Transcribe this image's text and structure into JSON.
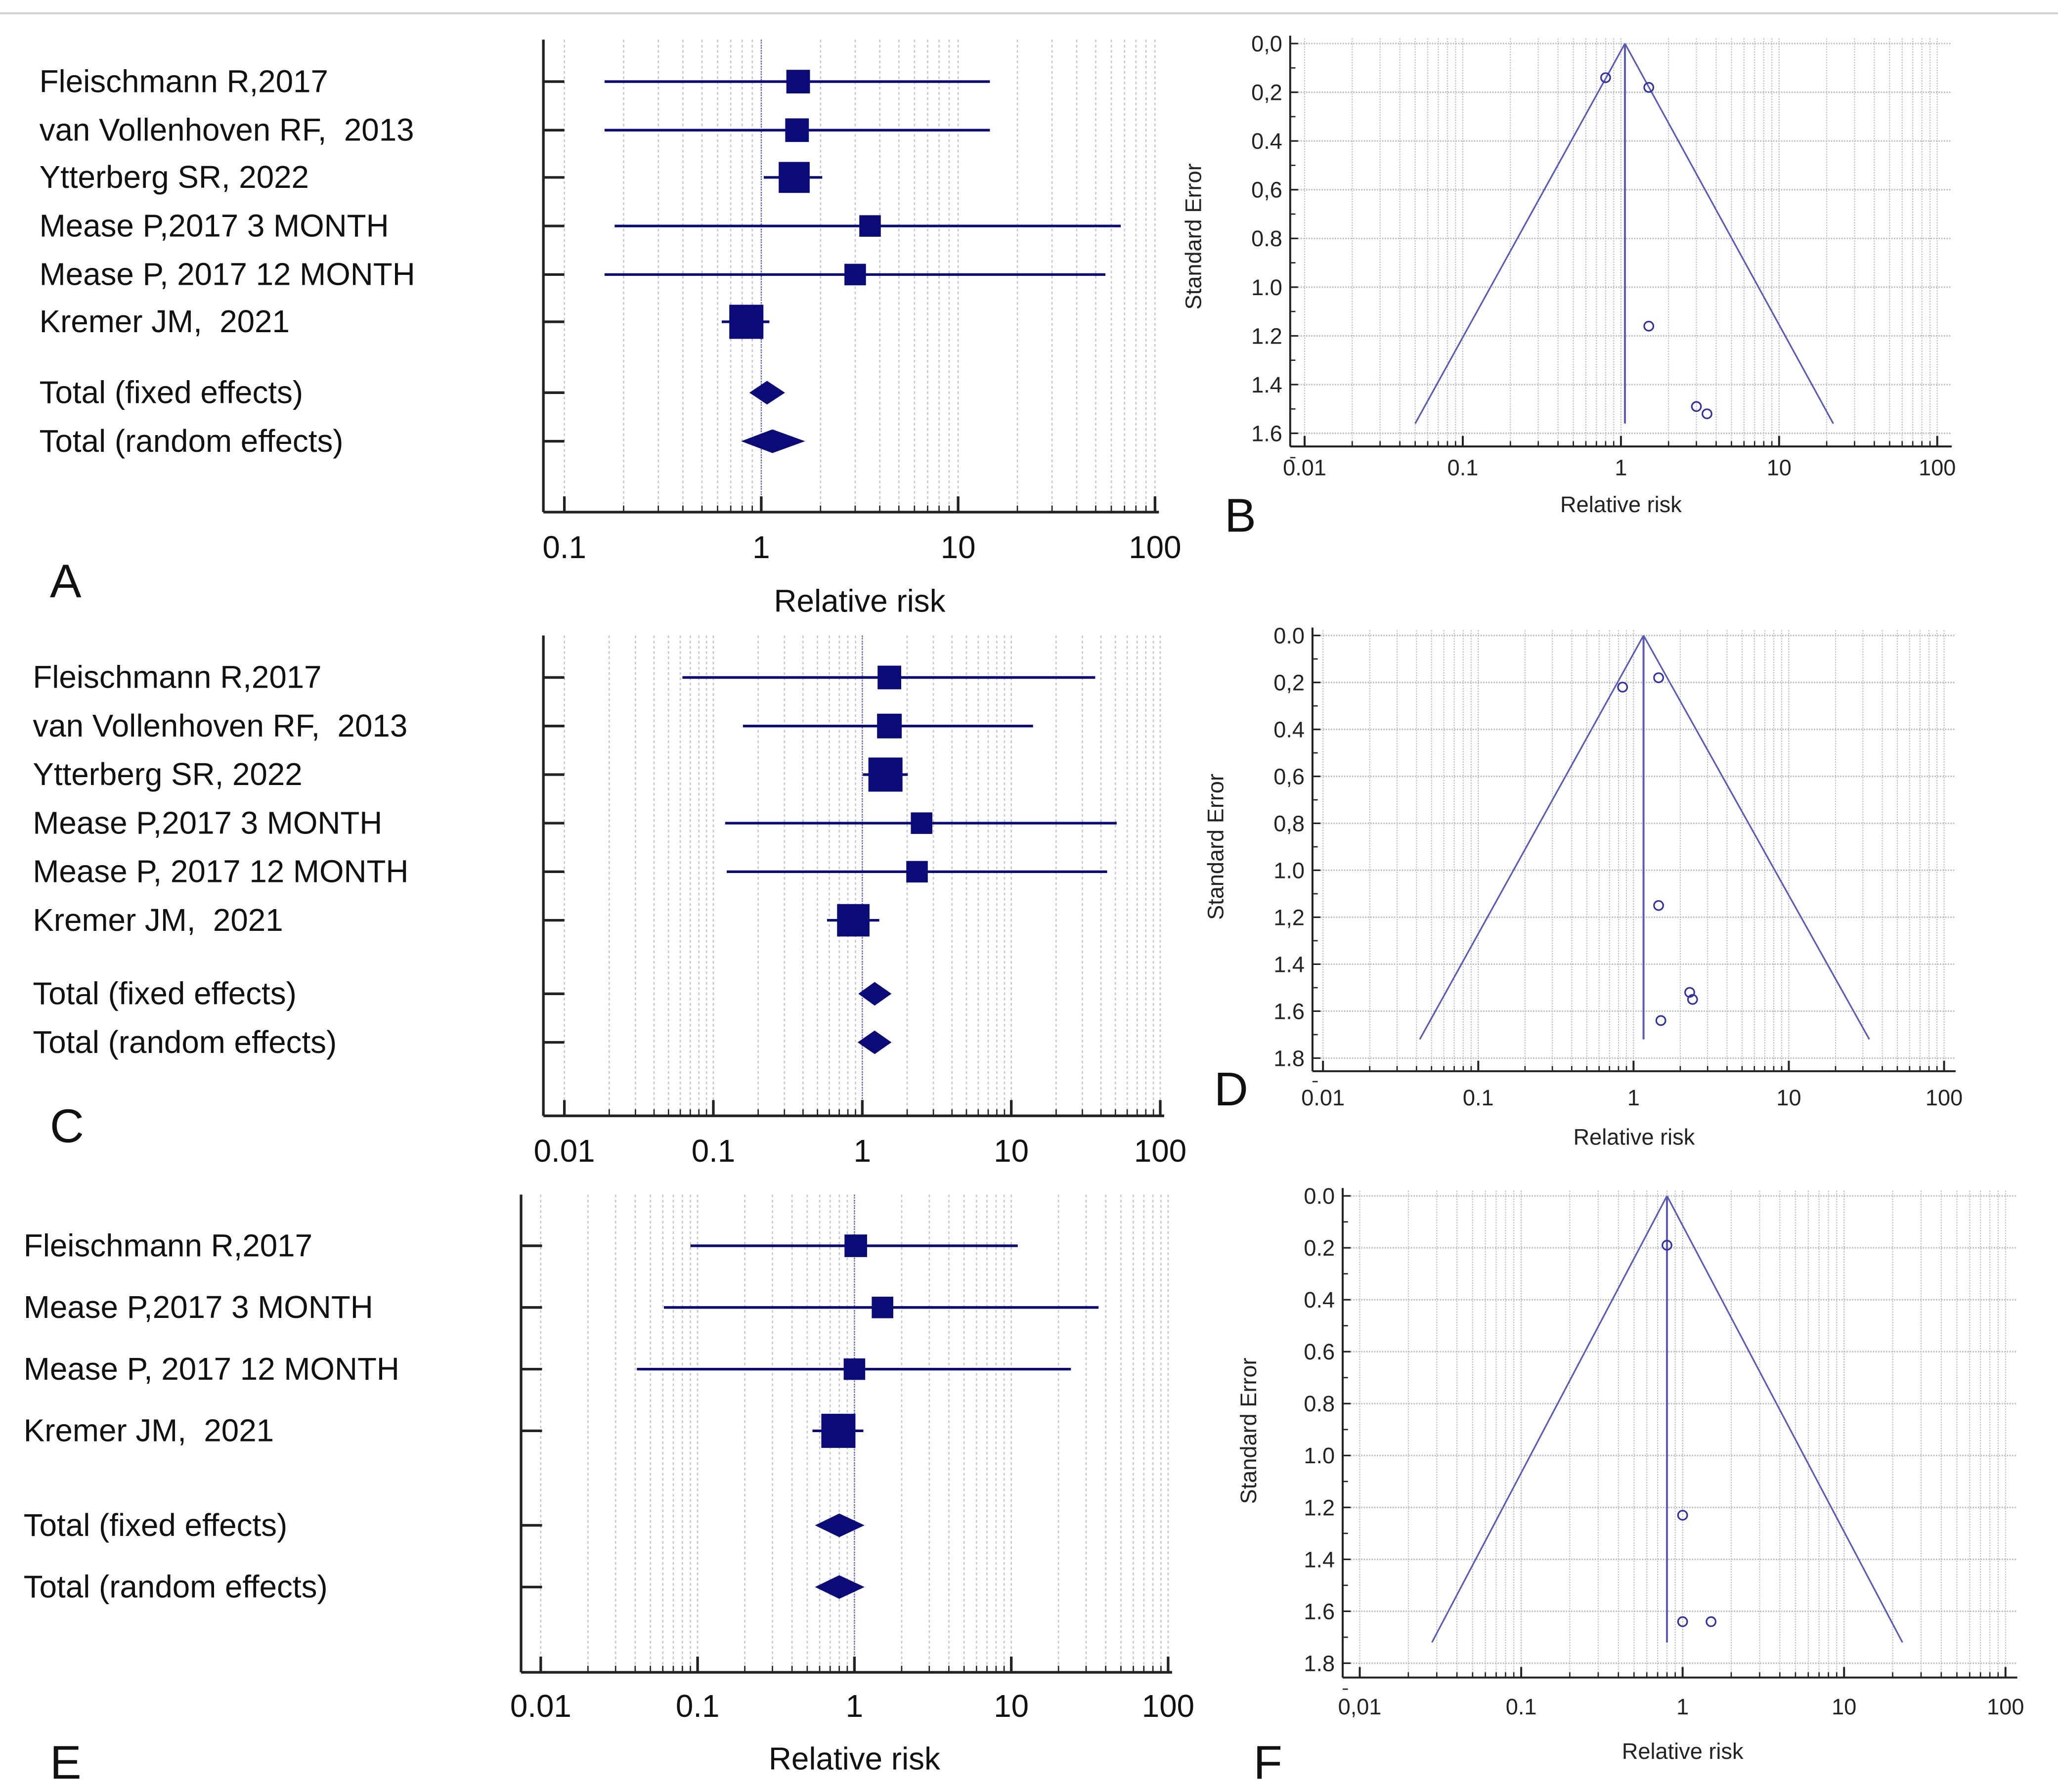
{
  "colors": {
    "marker": "#0a0a78",
    "funnel": "#5a5ab4",
    "grid": "#bdbdbd",
    "axis": "#222222"
  },
  "chart_data": [
    {
      "panel": "A",
      "type": "forest",
      "xlabel": "Relative risk",
      "xscale": "log",
      "xlim": [
        0.1,
        100
      ],
      "xticks": [
        "0.1",
        "1",
        "10",
        "100"
      ],
      "studies": [
        {
          "label": "Fleischmann R,2017",
          "rr": 1.54,
          "lo": 0.16,
          "hi": 14.5,
          "weight": 0.5
        },
        {
          "label": "van Vollenhoven RF,  2013",
          "rr": 1.52,
          "lo": 0.16,
          "hi": 14.5,
          "weight": 0.5
        },
        {
          "label": "Ytterberg SR, 2022",
          "rr": 1.47,
          "lo": 1.03,
          "hi": 2.04,
          "weight": 0.85
        },
        {
          "label": "Mease P,2017 3 MONTH",
          "rr": 3.57,
          "lo": 0.18,
          "hi": 67,
          "weight": 0.4
        },
        {
          "label": "Mease P, 2017 12 MONTH",
          "rr": 3.0,
          "lo": 0.16,
          "hi": 56,
          "weight": 0.4
        },
        {
          "label": "Kremer JM,  2021",
          "rr": 0.84,
          "lo": 0.63,
          "hi": 1.1,
          "weight": 1.0
        }
      ],
      "totals": [
        {
          "label": "Total (fixed effects)",
          "rr": 1.07,
          "lo": 0.87,
          "hi": 1.32
        },
        {
          "label": "Total (random effects)",
          "rr": 1.14,
          "lo": 0.79,
          "hi": 1.67
        }
      ]
    },
    {
      "panel": "B",
      "type": "funnel",
      "xlabel": "Relative risk",
      "ylabel": "Standard Error",
      "xscale": "log",
      "xlim": [
        0.01,
        100
      ],
      "ylim": [
        0,
        1.6
      ],
      "xticks": [
        "0.01",
        "0.1",
        "1",
        "10",
        "100"
      ],
      "yticks": [
        "0,0",
        "0,2",
        "0.4",
        "0,6",
        "0.8",
        "1.0",
        "1.2",
        "1.4",
        "1.6"
      ],
      "pooled_rr": 1.06,
      "funnel_se": 1.56,
      "funnel_lo": 0.05,
      "funnel_hi": 22,
      "points": [
        {
          "rr": 0.8,
          "se": 0.14
        },
        {
          "rr": 1.5,
          "se": 0.18
        },
        {
          "rr": 1.5,
          "se": 1.16
        },
        {
          "rr": 3.0,
          "se": 1.49
        },
        {
          "rr": 3.5,
          "se": 1.52
        }
      ]
    },
    {
      "panel": "C",
      "type": "forest",
      "xlabel": "",
      "xscale": "log",
      "xlim": [
        0.01,
        100
      ],
      "xticks": [
        "0.01",
        "0.1",
        "1",
        "10",
        "100"
      ],
      "studies": [
        {
          "label": "Fleischmann R,2017",
          "rr": 1.52,
          "lo": 0.062,
          "hi": 36.6,
          "weight": 0.5
        },
        {
          "label": "van Vollenhoven RF,  2013",
          "rr": 1.52,
          "lo": 0.158,
          "hi": 14,
          "weight": 0.55
        },
        {
          "label": "Ytterberg SR, 2022",
          "rr": 1.43,
          "lo": 1.01,
          "hi": 2.02,
          "weight": 1.0
        },
        {
          "label": "Mease P,2017 3 MONTH",
          "rr": 2.5,
          "lo": 0.12,
          "hi": 51,
          "weight": 0.4
        },
        {
          "label": "Mease P, 2017 12 MONTH",
          "rr": 2.33,
          "lo": 0.123,
          "hi": 44,
          "weight": 0.4
        },
        {
          "label": "Kremer JM,  2021",
          "rr": 0.87,
          "lo": 0.58,
          "hi": 1.3,
          "weight": 0.92
        }
      ],
      "totals": [
        {
          "label": "Total (fixed effects)",
          "rr": 1.21,
          "lo": 0.94,
          "hi": 1.57
        },
        {
          "label": "Total (random effects)",
          "rr": 1.21,
          "lo": 0.93,
          "hi": 1.57
        }
      ]
    },
    {
      "panel": "D",
      "type": "funnel",
      "xlabel": "Relative risk",
      "ylabel": "Standard Error",
      "xscale": "log",
      "xlim": [
        0.01,
        100
      ],
      "ylim": [
        0,
        1.8
      ],
      "xticks": [
        "0.01",
        "0.1",
        "1",
        "10",
        "100"
      ],
      "yticks": [
        "0.0",
        "0,2",
        "0.4",
        "0,6",
        "0,8",
        "1.0",
        "1,2",
        "1.4",
        "1.6",
        "1.8"
      ],
      "pooled_rr": 1.16,
      "funnel_se": 1.72,
      "funnel_lo": 0.042,
      "funnel_hi": 33,
      "points": [
        {
          "rr": 0.85,
          "se": 0.22
        },
        {
          "rr": 1.45,
          "se": 0.18
        },
        {
          "rr": 1.45,
          "se": 1.15
        },
        {
          "rr": 2.3,
          "se": 1.52
        },
        {
          "rr": 2.4,
          "se": 1.55
        },
        {
          "rr": 1.5,
          "se": 1.64
        }
      ]
    },
    {
      "panel": "E",
      "type": "forest",
      "xlabel": "Relative risk",
      "xscale": "log",
      "xlim": [
        0.01,
        100
      ],
      "xticks": [
        "0.01",
        "0.1",
        "1",
        "10",
        "100"
      ],
      "studies": [
        {
          "label": "Fleischmann R,2017",
          "rr": 1.02,
          "lo": 0.09,
          "hi": 11,
          "weight": 0.45
        },
        {
          "label": "Mease P,2017 3 MONTH",
          "rr": 1.51,
          "lo": 0.061,
          "hi": 36,
          "weight": 0.4
        },
        {
          "label": "Mease P, 2017 12 MONTH",
          "rr": 1.0,
          "lo": 0.041,
          "hi": 24,
          "weight": 0.4
        },
        {
          "label": "Kremer JM,  2021",
          "rr": 0.79,
          "lo": 0.54,
          "hi": 1.14,
          "weight": 1.0
        }
      ],
      "totals": [
        {
          "label": "Total (fixed effects)",
          "rr": 0.8,
          "lo": 0.56,
          "hi": 1.16
        },
        {
          "label": "Total (random effects)",
          "rr": 0.8,
          "lo": 0.56,
          "hi": 1.16
        }
      ]
    },
    {
      "panel": "F",
      "type": "funnel",
      "xlabel": "Relative risk",
      "ylabel": "Standard Error",
      "xscale": "log",
      "xlim": [
        0.01,
        100
      ],
      "ylim": [
        0,
        1.8
      ],
      "xticks": [
        "0,01",
        "0.1",
        "1",
        "10",
        "100"
      ],
      "yticks": [
        "0.0",
        "0.2",
        "0.4",
        "0.6",
        "0.8",
        "1.0",
        "1.2",
        "1.4",
        "1.6",
        "1.8"
      ],
      "pooled_rr": 0.8,
      "funnel_se": 1.72,
      "funnel_lo": 0.028,
      "funnel_hi": 23,
      "points": [
        {
          "rr": 0.8,
          "se": 0.19
        },
        {
          "rr": 1.0,
          "se": 1.23
        },
        {
          "rr": 1.0,
          "se": 1.64
        },
        {
          "rr": 1.5,
          "se": 1.64
        }
      ]
    }
  ]
}
